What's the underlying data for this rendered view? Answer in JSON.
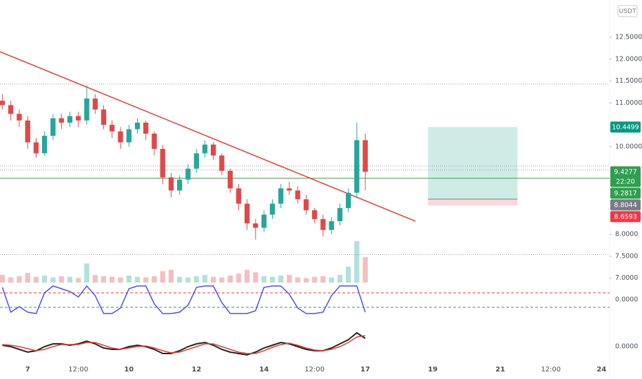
{
  "chart_data": {
    "type": "candlestick",
    "currency": "USDT",
    "countdown": "22:20",
    "x": [
      6.25,
      6.5,
      6.75,
      7,
      7.25,
      7.5,
      7.75,
      8,
      8.25,
      8.5,
      8.75,
      9,
      9.25,
      9.5,
      9.75,
      10,
      10.25,
      10.5,
      10.75,
      11,
      11.25,
      11.5,
      11.75,
      12,
      12.25,
      12.5,
      12.75,
      13,
      13.25,
      13.5,
      13.75,
      14,
      14.25,
      14.5,
      14.75,
      15,
      15.25,
      15.5,
      15.75,
      16,
      16.25,
      16.5,
      16.75,
      17
    ],
    "open": [
      11.05,
      10.95,
      10.75,
      10.6,
      10.1,
      9.85,
      10.25,
      10.65,
      10.55,
      10.7,
      10.6,
      11.1,
      10.85,
      10.5,
      10.35,
      10.1,
      10.4,
      10.55,
      10.3,
      9.95,
      9.3,
      9.0,
      9.25,
      9.5,
      9.85,
      10.05,
      9.8,
      9.45,
      9.05,
      8.7,
      8.25,
      8.15,
      8.45,
      8.7,
      9.05,
      9.0,
      8.8,
      8.55,
      8.35,
      8.1,
      8.3,
      8.6,
      8.95,
      10.15
    ],
    "high": [
      11.2,
      11.05,
      10.85,
      10.7,
      10.2,
      10.35,
      10.75,
      10.75,
      10.8,
      10.8,
      11.4,
      11.2,
      10.95,
      10.6,
      10.45,
      10.5,
      10.65,
      10.6,
      10.35,
      10.05,
      9.4,
      9.35,
      9.6,
      9.95,
      10.15,
      10.1,
      9.85,
      9.5,
      9.15,
      8.8,
      8.35,
      8.55,
      8.8,
      9.15,
      9.2,
      9.1,
      8.9,
      8.6,
      8.45,
      8.4,
      8.7,
      9.05,
      10.55,
      10.3
    ],
    "low": [
      10.85,
      10.6,
      10.45,
      9.95,
      9.75,
      9.8,
      10.15,
      10.4,
      10.45,
      10.45,
      10.5,
      10.75,
      10.4,
      10.2,
      9.95,
      10.0,
      10.3,
      10.15,
      9.8,
      9.15,
      8.85,
      8.9,
      9.15,
      9.4,
      9.75,
      9.7,
      9.35,
      8.95,
      8.55,
      8.1,
      7.88,
      8.05,
      8.35,
      8.6,
      8.9,
      8.7,
      8.45,
      8.25,
      7.95,
      8.0,
      8.2,
      8.5,
      8.85,
      9.0
    ],
    "close": [
      10.95,
      10.75,
      10.6,
      10.1,
      9.85,
      10.25,
      10.65,
      10.55,
      10.7,
      10.6,
      11.1,
      10.85,
      10.5,
      10.35,
      10.1,
      10.4,
      10.55,
      10.3,
      9.95,
      9.3,
      9.0,
      9.25,
      9.5,
      9.85,
      10.05,
      9.8,
      9.45,
      9.05,
      8.7,
      8.25,
      8.15,
      8.45,
      8.7,
      9.05,
      9.0,
      8.8,
      8.55,
      8.35,
      8.1,
      8.3,
      8.6,
      8.95,
      10.15,
      9.4277
    ],
    "volume": [
      12,
      8,
      10,
      15,
      9,
      11,
      8,
      10,
      9,
      7,
      30,
      12,
      10,
      9,
      8,
      11,
      9,
      8,
      10,
      18,
      20,
      9,
      8,
      10,
      12,
      9,
      8,
      11,
      14,
      20,
      16,
      10,
      9,
      11,
      12,
      8,
      7,
      9,
      10,
      8,
      12,
      25,
      65,
      40
    ],
    "up_color": "#26a69a",
    "down_color": "#e04848",
    "xlim": [
      6.18,
      24.24
    ],
    "xticks": [
      7,
      {
        "value": 8.5,
        "label": "12:00"
      },
      10,
      12,
      14,
      {
        "value": 15.5,
        "label": "12:00"
      },
      17,
      19,
      21,
      {
        "value": 22.5,
        "label": "12:00"
      },
      24
    ],
    "ylim": [
      6.9,
      13.35
    ],
    "yticks": [
      {
        "value": 7,
        "label": "7.0000"
      },
      {
        "value": 7.5,
        "label": "7.5000"
      },
      {
        "value": 8,
        "label": "8.0000"
      },
      {
        "value": 10,
        "label": "10.0000"
      },
      {
        "value": 11,
        "label": "11.0000"
      },
      {
        "value": 11.5,
        "label": "11.5000"
      },
      {
        "value": 12,
        "label": "12.0000"
      },
      {
        "value": 12.5,
        "label": "12.5000"
      }
    ],
    "trendline": {
      "x": [
        6.18,
        18.49
      ],
      "y": [
        12.17,
        8.3
      ],
      "color": "#e53935"
    },
    "levels": [
      {
        "value": 11.43,
        "color": "#9598a1",
        "style": "dotted"
      },
      {
        "value": 9.56,
        "color": "#9598a1",
        "style": "dotted"
      },
      {
        "value": 9.47,
        "color": "#9598a1",
        "style": "dotted"
      },
      {
        "value": 9.2817,
        "color": "#43a047",
        "style": "solid"
      },
      {
        "value": 7.54,
        "color": "#9598a1",
        "style": "dotted"
      }
    ],
    "position": {
      "x": [
        18.86,
        21.51
      ],
      "entry": 8.8044,
      "target": 10.4499,
      "stop": 8.6593
    },
    "price_labels": [
      {
        "value": 10.4499,
        "color": "#089981"
      },
      {
        "value": 9.4277,
        "color": "#2e9e4f"
      },
      {
        "value": 9.2817,
        "color": "#2e9e4f"
      },
      {
        "value": 8.8044,
        "color": "#787b86"
      },
      {
        "value": 8.6593,
        "color": "#f23645"
      }
    ],
    "indicators": [
      {
        "type": "stoch",
        "ylim": [
          -1.5,
          1.5
        ],
        "yticks": [
          {
            "value": 0,
            "label": "0.0000"
          }
        ],
        "bands": [
          {
            "value": 0.5,
            "color": "#e53935"
          },
          {
            "value": -0.55,
            "color": "#2e9e4f"
          }
        ],
        "series": [
          {
            "color": "#4a4ef0",
            "values": [
              0.9,
              -0.9,
              -0.5,
              -0.9,
              -1,
              0.5,
              1,
              0.8,
              0.6,
              0.2,
              1,
              0.3,
              -1,
              -1,
              -0.6,
              0.8,
              1,
              1,
              -0.3,
              -1,
              -1,
              -0.9,
              -0.4,
              0.9,
              1,
              1,
              -0.2,
              -1,
              -1,
              -1,
              -0.8,
              0.9,
              1,
              1,
              0.4,
              -0.6,
              -1,
              -1,
              -0.9,
              0.3,
              1,
              1,
              1,
              -0.9
            ]
          }
        ]
      },
      {
        "type": "macd",
        "ylim": [
          -1,
          1
        ],
        "yticks": [
          {
            "value": 0,
            "label": "0.0000"
          }
        ],
        "bands": [],
        "series": [
          {
            "color": "#222222",
            "values": [
              0.1,
              0,
              -0.2,
              -0.4,
              -0.3,
              0,
              0.2,
              0.2,
              0.1,
              0.2,
              0.4,
              0.2,
              -0.1,
              -0.2,
              -0.2,
              0,
              0.1,
              0,
              -0.2,
              -0.5,
              -0.5,
              -0.3,
              0,
              0.2,
              0.3,
              0.1,
              -0.2,
              -0.4,
              -0.5,
              -0.6,
              -0.4,
              -0.1,
              0.1,
              0.3,
              0.2,
              0,
              -0.2,
              -0.3,
              -0.3,
              -0.1,
              0.2,
              0.5,
              1.0,
              0.6
            ]
          },
          {
            "color": "#e53935",
            "values": [
              0.15,
              0.1,
              0,
              -0.15,
              -0.3,
              -0.2,
              0,
              0.15,
              0.15,
              0.15,
              0.3,
              0.3,
              0.1,
              -0.1,
              -0.2,
              -0.1,
              0,
              0.05,
              -0.1,
              -0.3,
              -0.45,
              -0.4,
              -0.2,
              0,
              0.2,
              0.2,
              0,
              -0.2,
              -0.4,
              -0.5,
              -0.5,
              -0.3,
              -0.05,
              0.15,
              0.25,
              0.1,
              -0.1,
              -0.25,
              -0.3,
              -0.2,
              0,
              0.3,
              0.7,
              0.8
            ]
          }
        ]
      }
    ]
  }
}
